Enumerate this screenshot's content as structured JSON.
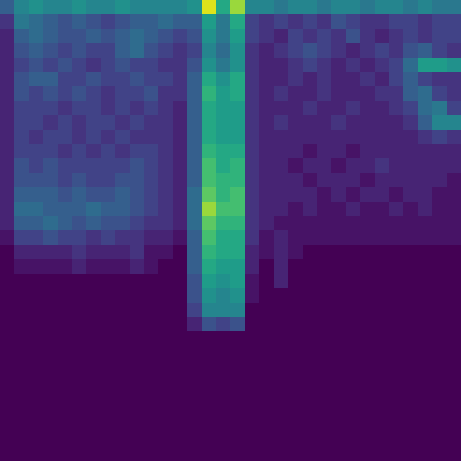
{
  "chart_data": {
    "type": "heatmap",
    "color": "Viridis",
    "zlim": [
      0,
      1
    ],
    "tick_labels": false,
    "grid": false,
    "cells": [
      [
        0.3,
        0.45,
        0.5,
        0.45,
        0.45,
        0.5,
        0.45,
        0.45,
        0.5,
        0.45,
        0.45,
        0.45,
        0.45,
        0.5,
        0.95,
        0.6,
        0.85,
        0.45,
        0.45,
        0.4,
        0.45,
        0.45,
        0.4,
        0.45,
        0.45,
        0.4,
        0.45,
        0.45,
        0.4,
        0.45,
        0.4,
        0.4
      ],
      [
        0.15,
        0.4,
        0.35,
        0.3,
        0.25,
        0.3,
        0.25,
        0.2,
        0.25,
        0.3,
        0.3,
        0.35,
        0.3,
        0.3,
        0.55,
        0.4,
        0.6,
        0.2,
        0.15,
        0.2,
        0.15,
        0.2,
        0.15,
        0.25,
        0.2,
        0.15,
        0.15,
        0.2,
        0.2,
        0.15,
        0.2,
        0.2
      ],
      [
        0.1,
        0.3,
        0.35,
        0.3,
        0.25,
        0.25,
        0.3,
        0.25,
        0.3,
        0.35,
        0.3,
        0.25,
        0.2,
        0.25,
        0.5,
        0.4,
        0.55,
        0.2,
        0.15,
        0.1,
        0.2,
        0.15,
        0.2,
        0.15,
        0.25,
        0.15,
        0.1,
        0.15,
        0.2,
        0.15,
        0.2,
        0.2
      ],
      [
        0.1,
        0.25,
        0.3,
        0.25,
        0.2,
        0.25,
        0.2,
        0.2,
        0.3,
        0.35,
        0.25,
        0.2,
        0.15,
        0.2,
        0.45,
        0.35,
        0.5,
        0.15,
        0.1,
        0.15,
        0.2,
        0.25,
        0.2,
        0.15,
        0.1,
        0.15,
        0.2,
        0.15,
        0.25,
        0.3,
        0.2,
        0.15
      ],
      [
        0.1,
        0.2,
        0.25,
        0.2,
        0.25,
        0.2,
        0.15,
        0.2,
        0.25,
        0.2,
        0.2,
        0.15,
        0.15,
        0.25,
        0.5,
        0.4,
        0.5,
        0.15,
        0.1,
        0.1,
        0.15,
        0.2,
        0.15,
        0.1,
        0.15,
        0.1,
        0.15,
        0.2,
        0.35,
        0.55,
        0.55,
        0.5
      ],
      [
        0.1,
        0.25,
        0.3,
        0.3,
        0.2,
        0.2,
        0.25,
        0.2,
        0.2,
        0.25,
        0.2,
        0.2,
        0.15,
        0.3,
        0.6,
        0.5,
        0.6,
        0.15,
        0.1,
        0.1,
        0.15,
        0.1,
        0.15,
        0.1,
        0.1,
        0.15,
        0.1,
        0.2,
        0.3,
        0.2,
        0.15,
        0.15
      ],
      [
        0.1,
        0.25,
        0.2,
        0.25,
        0.2,
        0.25,
        0.2,
        0.15,
        0.2,
        0.2,
        0.25,
        0.15,
        0.15,
        0.3,
        0.65,
        0.55,
        0.6,
        0.15,
        0.1,
        0.15,
        0.1,
        0.1,
        0.15,
        0.1,
        0.1,
        0.1,
        0.15,
        0.15,
        0.3,
        0.35,
        0.2,
        0.15
      ],
      [
        0.1,
        0.2,
        0.2,
        0.2,
        0.15,
        0.2,
        0.2,
        0.15,
        0.2,
        0.15,
        0.2,
        0.15,
        0.1,
        0.3,
        0.6,
        0.55,
        0.55,
        0.15,
        0.1,
        0.1,
        0.1,
        0.15,
        0.1,
        0.1,
        0.15,
        0.1,
        0.1,
        0.15,
        0.2,
        0.35,
        0.4,
        0.2
      ],
      [
        0.1,
        0.2,
        0.2,
        0.15,
        0.2,
        0.15,
        0.2,
        0.2,
        0.15,
        0.2,
        0.15,
        0.15,
        0.1,
        0.3,
        0.6,
        0.55,
        0.55,
        0.15,
        0.1,
        0.15,
        0.1,
        0.1,
        0.1,
        0.15,
        0.1,
        0.1,
        0.1,
        0.1,
        0.15,
        0.3,
        0.45,
        0.45
      ],
      [
        0.1,
        0.2,
        0.15,
        0.2,
        0.2,
        0.15,
        0.2,
        0.15,
        0.2,
        0.15,
        0.15,
        0.15,
        0.1,
        0.3,
        0.6,
        0.55,
        0.55,
        0.15,
        0.1,
        0.1,
        0.1,
        0.1,
        0.1,
        0.1,
        0.1,
        0.1,
        0.1,
        0.1,
        0.1,
        0.15,
        0.2,
        0.15
      ],
      [
        0.1,
        0.2,
        0.2,
        0.2,
        0.15,
        0.2,
        0.15,
        0.2,
        0.15,
        0.2,
        0.2,
        0.15,
        0.1,
        0.3,
        0.65,
        0.6,
        0.6,
        0.15,
        0.1,
        0.1,
        0.1,
        0.05,
        0.1,
        0.1,
        0.05,
        0.1,
        0.1,
        0.1,
        0.1,
        0.1,
        0.1,
        0.1
      ],
      [
        0.1,
        0.25,
        0.2,
        0.25,
        0.2,
        0.2,
        0.2,
        0.2,
        0.2,
        0.25,
        0.2,
        0.15,
        0.1,
        0.3,
        0.7,
        0.6,
        0.65,
        0.15,
        0.1,
        0.1,
        0.05,
        0.1,
        0.1,
        0.05,
        0.1,
        0.1,
        0.15,
        0.1,
        0.1,
        0.1,
        0.1,
        0.1
      ],
      [
        0.1,
        0.25,
        0.25,
        0.25,
        0.2,
        0.25,
        0.2,
        0.2,
        0.25,
        0.25,
        0.2,
        0.15,
        0.1,
        0.3,
        0.7,
        0.65,
        0.65,
        0.15,
        0.1,
        0.1,
        0.1,
        0.05,
        0.1,
        0.1,
        0.1,
        0.05,
        0.1,
        0.1,
        0.1,
        0.1,
        0.1,
        0.05
      ],
      [
        0.1,
        0.3,
        0.3,
        0.3,
        0.25,
        0.3,
        0.25,
        0.25,
        0.3,
        0.25,
        0.2,
        0.15,
        0.1,
        0.35,
        0.75,
        0.65,
        0.7,
        0.15,
        0.1,
        0.1,
        0.1,
        0.1,
        0.05,
        0.1,
        0.05,
        0.1,
        0.1,
        0.05,
        0.1,
        0.1,
        0.05,
        0.05
      ],
      [
        0.1,
        0.35,
        0.35,
        0.3,
        0.3,
        0.3,
        0.35,
        0.3,
        0.3,
        0.25,
        0.2,
        0.15,
        0.1,
        0.35,
        0.85,
        0.7,
        0.7,
        0.15,
        0.1,
        0.1,
        0.05,
        0.1,
        0.05,
        0.05,
        0.1,
        0.05,
        0.05,
        0.1,
        0.05,
        0.1,
        0.05,
        0.05
      ],
      [
        0.1,
        0.3,
        0.3,
        0.35,
        0.3,
        0.25,
        0.3,
        0.25,
        0.25,
        0.2,
        0.15,
        0.15,
        0.1,
        0.35,
        0.75,
        0.65,
        0.65,
        0.15,
        0.1,
        0.05,
        0.05,
        0.05,
        0.05,
        0.05,
        0.05,
        0.05,
        0.05,
        0.05,
        0.05,
        0.05,
        0.05,
        0.05
      ],
      [
        0.05,
        0.2,
        0.2,
        0.25,
        0.2,
        0.2,
        0.15,
        0.2,
        0.15,
        0.15,
        0.1,
        0.1,
        0.05,
        0.3,
        0.7,
        0.6,
        0.6,
        0.15,
        0.05,
        0.1,
        0.05,
        0.05,
        0.05,
        0.05,
        0.05,
        0.05,
        0.05,
        0.05,
        0.05,
        0.05,
        0.05,
        0.05
      ],
      [
        0,
        0.1,
        0.1,
        0.1,
        0.1,
        0.15,
        0.1,
        0.1,
        0.1,
        0.15,
        0.05,
        0.05,
        0,
        0.3,
        0.65,
        0.6,
        0.6,
        0.1,
        0.05,
        0.1,
        0.05,
        0,
        0,
        0,
        0,
        0,
        0,
        0,
        0,
        0,
        0,
        0
      ],
      [
        0,
        0.05,
        0.05,
        0.05,
        0.05,
        0.1,
        0.05,
        0.05,
        0.05,
        0.1,
        0.05,
        0,
        0,
        0.3,
        0.6,
        0.55,
        0.55,
        0.1,
        0,
        0.1,
        0,
        0,
        0,
        0,
        0,
        0,
        0,
        0,
        0,
        0,
        0,
        0
      ],
      [
        0,
        0,
        0,
        0,
        0,
        0,
        0,
        0,
        0,
        0,
        0,
        0,
        0,
        0.25,
        0.55,
        0.5,
        0.55,
        0.05,
        0,
        0.1,
        0,
        0,
        0,
        0,
        0,
        0,
        0,
        0,
        0,
        0,
        0,
        0
      ],
      [
        0,
        0,
        0,
        0,
        0,
        0,
        0,
        0,
        0,
        0,
        0,
        0,
        0,
        0.25,
        0.5,
        0.45,
        0.5,
        0.05,
        0,
        0,
        0,
        0,
        0,
        0,
        0,
        0,
        0,
        0,
        0,
        0,
        0,
        0
      ],
      [
        0,
        0,
        0,
        0,
        0,
        0,
        0,
        0,
        0,
        0,
        0,
        0,
        0,
        0.2,
        0.45,
        0.45,
        0.45,
        0,
        0,
        0,
        0,
        0,
        0,
        0,
        0,
        0,
        0,
        0,
        0,
        0,
        0,
        0
      ],
      [
        0,
        0,
        0,
        0,
        0,
        0,
        0,
        0,
        0,
        0,
        0,
        0,
        0,
        0.1,
        0.25,
        0.2,
        0.25,
        0,
        0,
        0,
        0,
        0,
        0,
        0,
        0,
        0,
        0,
        0,
        0,
        0,
        0,
        0
      ],
      [
        0,
        0,
        0,
        0,
        0,
        0,
        0,
        0,
        0,
        0,
        0,
        0,
        0,
        0,
        0,
        0,
        0,
        0,
        0,
        0,
        0,
        0,
        0,
        0,
        0,
        0,
        0,
        0,
        0,
        0,
        0,
        0
      ],
      [
        0,
        0,
        0,
        0,
        0,
        0,
        0,
        0,
        0,
        0,
        0,
        0,
        0,
        0,
        0,
        0,
        0,
        0,
        0,
        0,
        0,
        0,
        0,
        0,
        0,
        0,
        0,
        0,
        0,
        0,
        0,
        0
      ],
      [
        0,
        0,
        0,
        0,
        0,
        0,
        0,
        0,
        0,
        0,
        0,
        0,
        0,
        0,
        0,
        0,
        0,
        0,
        0,
        0,
        0,
        0,
        0,
        0,
        0,
        0,
        0,
        0,
        0,
        0,
        0,
        0
      ],
      [
        0,
        0,
        0,
        0,
        0,
        0,
        0,
        0,
        0,
        0,
        0,
        0,
        0,
        0,
        0,
        0,
        0,
        0,
        0,
        0,
        0,
        0,
        0,
        0,
        0,
        0,
        0,
        0,
        0,
        0,
        0,
        0
      ],
      [
        0,
        0,
        0,
        0,
        0,
        0,
        0,
        0,
        0,
        0,
        0,
        0,
        0,
        0,
        0,
        0,
        0,
        0,
        0,
        0,
        0,
        0,
        0,
        0,
        0,
        0,
        0,
        0,
        0,
        0,
        0,
        0
      ],
      [
        0,
        0,
        0,
        0,
        0,
        0,
        0,
        0,
        0,
        0,
        0,
        0,
        0,
        0,
        0,
        0,
        0,
        0,
        0,
        0,
        0,
        0,
        0,
        0,
        0,
        0,
        0,
        0,
        0,
        0,
        0,
        0
      ],
      [
        0,
        0,
        0,
        0,
        0,
        0,
        0,
        0,
        0,
        0,
        0,
        0,
        0,
        0,
        0,
        0,
        0,
        0,
        0,
        0,
        0,
        0,
        0,
        0,
        0,
        0,
        0,
        0,
        0,
        0,
        0,
        0
      ],
      [
        0,
        0,
        0,
        0,
        0,
        0,
        0,
        0,
        0,
        0,
        0,
        0,
        0,
        0,
        0,
        0,
        0,
        0,
        0,
        0,
        0,
        0,
        0,
        0,
        0,
        0,
        0,
        0,
        0,
        0,
        0,
        0
      ],
      [
        0,
        0,
        0,
        0,
        0,
        0,
        0,
        0,
        0,
        0,
        0,
        0,
        0,
        0,
        0,
        0,
        0,
        0,
        0,
        0,
        0,
        0,
        0,
        0,
        0,
        0,
        0,
        0,
        0,
        0,
        0,
        0
      ]
    ]
  }
}
